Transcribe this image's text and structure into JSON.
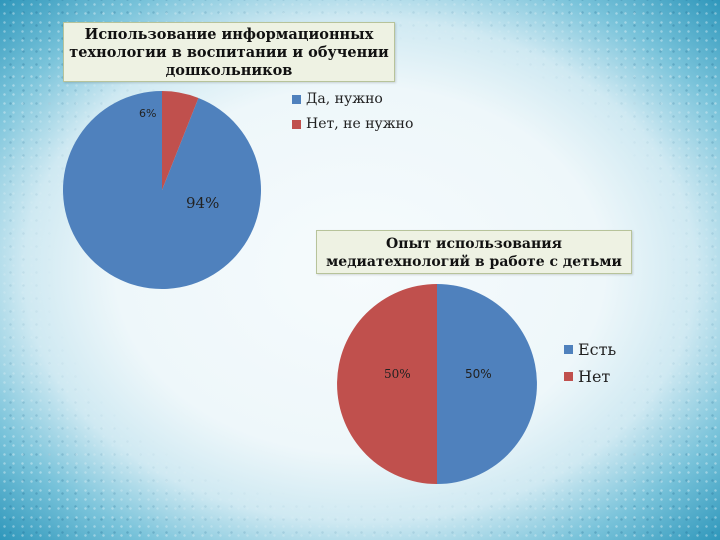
{
  "colors": {
    "blue": "#4f81bd",
    "red": "#c0504d"
  },
  "chart_data": [
    {
      "type": "pie",
      "title": "Использование информационных технологии в воспитании и обучении дошкольников",
      "title_lines": [
        "Использование информационных",
        "технологии в воспитании и обучении",
        "дошкольников"
      ],
      "categories": [
        "Да, нужно",
        "Нет, не нужно"
      ],
      "values": [
        94,
        6
      ],
      "data_labels": [
        "94%",
        "6%"
      ],
      "legend": "right"
    },
    {
      "type": "pie",
      "title": "Опыт использования медиатехнологий в работе с детьми",
      "title_lines": [
        "Опыт использования",
        "медиатехнологий в работе с детьми"
      ],
      "categories": [
        "Есть",
        "Нет"
      ],
      "values": [
        50,
        50
      ],
      "data_labels": [
        "50%",
        "50%"
      ],
      "legend": "right"
    }
  ]
}
